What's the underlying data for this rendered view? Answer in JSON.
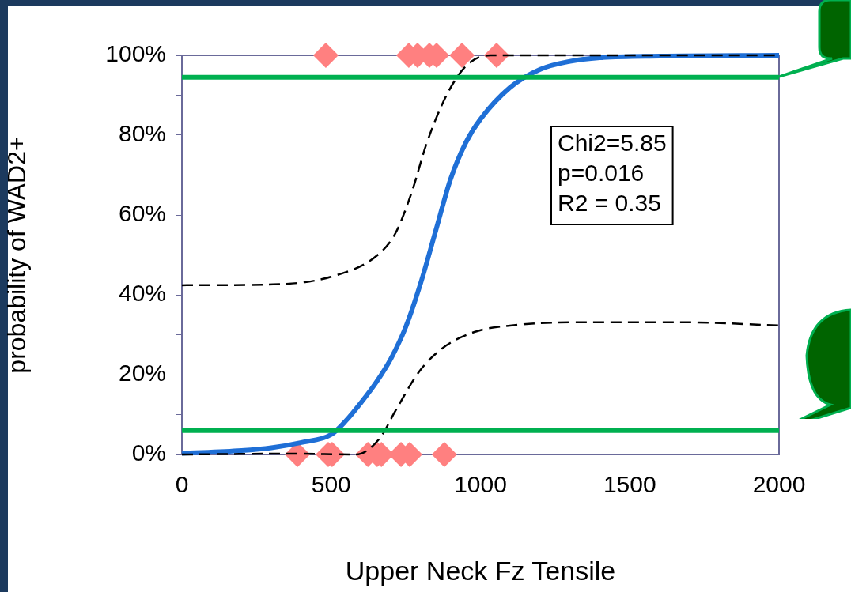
{
  "chart_data": {
    "type": "line",
    "xlabel": "Upper Neck Fz Tensile",
    "ylabel": "probability of WAD2+",
    "xlim": [
      0,
      2000
    ],
    "xticks": [
      0,
      500,
      1000,
      1500,
      2000
    ],
    "ylim": [
      0,
      100
    ],
    "yticks": [
      {
        "value": 0,
        "label": "0%"
      },
      {
        "value": 10,
        "label": null
      },
      {
        "value": 20,
        "label": "20%"
      },
      {
        "value": 30,
        "label": null
      },
      {
        "value": 40,
        "label": "40%"
      },
      {
        "value": 50,
        "label": null
      },
      {
        "value": 60,
        "label": "60%"
      },
      {
        "value": 70,
        "label": null
      },
      {
        "value": 80,
        "label": "80%"
      },
      {
        "value": 90,
        "label": null
      },
      {
        "value": 100,
        "label": "100%"
      }
    ],
    "grid": false,
    "legend": false,
    "series": [
      {
        "color": "#1f6fd6",
        "line_style": "solid",
        "marker": "none",
        "x": [
          0,
          200,
          300,
          400,
          500,
          550,
          600,
          650,
          700,
          750,
          800,
          850,
          900,
          950,
          1000,
          1100,
          1200,
          1300,
          1400,
          1600,
          2000
        ],
        "values": [
          0.3,
          1,
          1.7,
          3,
          5,
          8.5,
          13,
          18,
          24,
          32,
          43,
          56,
          69,
          78,
          84,
          92,
          96.5,
          98.5,
          99.4,
          99.8,
          100
        ]
      },
      {
        "color": "#000000",
        "line_style": "dashed",
        "marker": "none",
        "x": [
          0,
          305,
          503,
          656,
          715,
          768,
          821,
          887,
          954,
          1033,
          2000
        ],
        "values": [
          42.4,
          42.6,
          44.6,
          50,
          55.4,
          65.3,
          78.2,
          90.1,
          97.5,
          100,
          100
        ]
      },
      {
        "color": "#000000",
        "line_style": "dashed",
        "marker": "none",
        "x": [
          0,
          371,
          583,
          662,
          715,
          795,
          874,
          980,
          1099,
          1298,
          1695,
          2000
        ],
        "values": [
          0,
          0.2,
          0,
          4,
          10.9,
          20.8,
          26.7,
          30.7,
          32.3,
          33.1,
          33.1,
          32.3
        ]
      },
      {
        "type": "scatter",
        "color": "#ff8080",
        "marker": "diamond",
        "x": [
          482,
          760,
          789,
          829,
          853,
          938,
          1054,
          387,
          490,
          503,
          623,
          654,
          668,
          734,
          763,
          879
        ],
        "values": [
          100,
          100,
          100,
          100,
          100,
          100,
          100,
          0,
          0,
          0,
          0,
          0,
          0,
          0,
          0,
          0
        ]
      }
    ],
    "ref_lines": [
      {
        "axis": "y",
        "value": 94.5,
        "color": "#00b050"
      },
      {
        "axis": "y",
        "value": 6,
        "color": "#00b050"
      }
    ],
    "annotations": [
      "Chi2=5.85\np=0.016\nR2 = 0.35"
    ]
  }
}
